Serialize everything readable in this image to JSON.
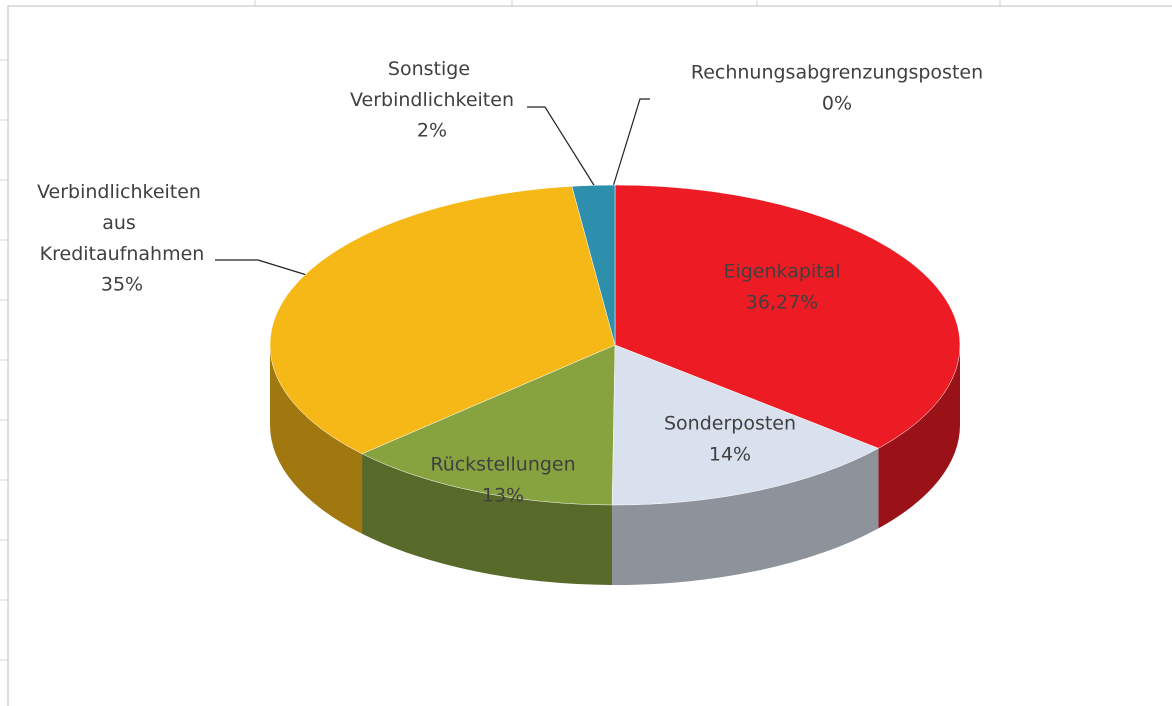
{
  "chart_data": {
    "type": "pie",
    "categories": [
      "Eigenkapital",
      "Sonderposten",
      "Rückstellungen",
      "Verbindlichkeiten aus Kreditaufnahmen",
      "Sonstige Verbindlichkeiten",
      "Rechnungsabgrenzungsposten"
    ],
    "values": [
      36.27,
      14,
      13,
      35,
      2,
      0
    ],
    "value_labels": [
      "36,27%",
      "14%",
      "13%",
      "35%",
      "2%",
      "0%"
    ],
    "colors": [
      "#ed1c24",
      "#d9e1ee",
      "#86a33f",
      "#f6b817",
      "#2e8fad",
      "#5b9bd5"
    ]
  }
}
